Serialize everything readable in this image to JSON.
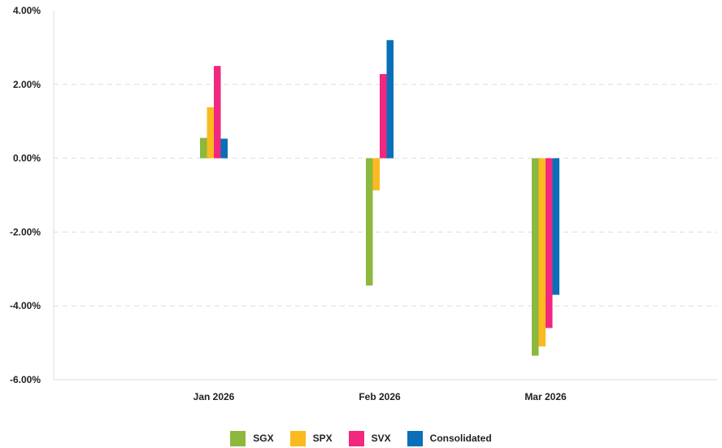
{
  "chart_data": {
    "type": "bar",
    "title": "",
    "xlabel": "",
    "ylabel": "",
    "categories": [
      "Jan 2026",
      "Feb 2026",
      "Mar 2026"
    ],
    "yticks": [
      "4.00%",
      "2.00%",
      "0.00%",
      "-2.00%",
      "-4.00%",
      "-6.00%"
    ],
    "ylim": [
      -6,
      4
    ],
    "grid": true,
    "legend_position": "bottom",
    "series": [
      {
        "name": "SGX",
        "color": "#8CB83E",
        "values": [
          0.55,
          -3.45,
          -5.35
        ]
      },
      {
        "name": "SPX",
        "color": "#FBBA20",
        "values": [
          1.38,
          -0.87,
          -5.1
        ]
      },
      {
        "name": "SVX",
        "color": "#F1287F",
        "values": [
          2.5,
          2.28,
          -4.6
        ]
      },
      {
        "name": "Consolidated",
        "color": "#0A6FB8",
        "values": [
          0.53,
          3.2,
          -3.7
        ]
      }
    ]
  }
}
